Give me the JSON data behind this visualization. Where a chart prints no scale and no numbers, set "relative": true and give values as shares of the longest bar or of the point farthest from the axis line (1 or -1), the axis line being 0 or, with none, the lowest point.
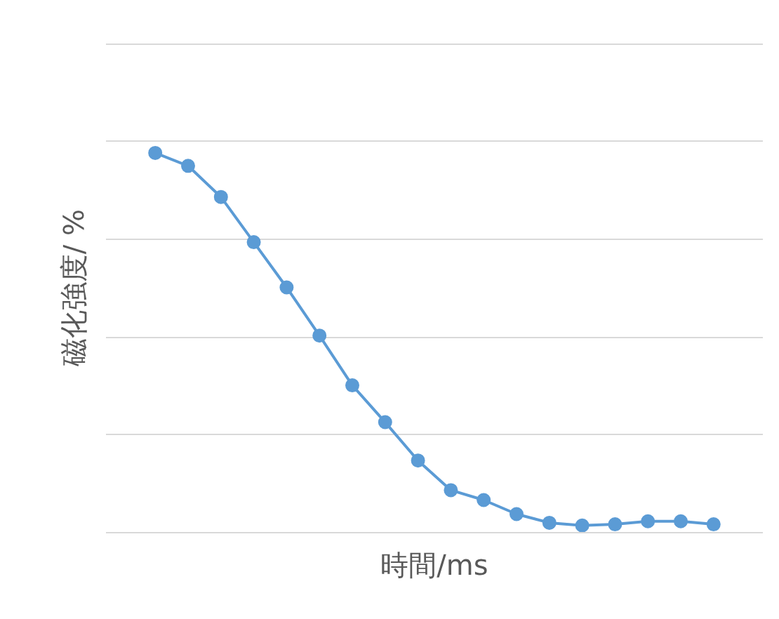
{
  "chart_data": {
    "type": "line",
    "xlabel": "時間/ms",
    "ylabel": "磁化強度/ %",
    "relative": true,
    "marker": "circle",
    "line_style": "solid",
    "grid": "y",
    "categories": [
      null,
      null,
      null,
      null,
      null,
      null,
      null,
      null,
      null,
      null,
      null,
      null,
      null,
      null,
      null,
      null,
      null,
      null
    ],
    "series": [
      {
        "color": "#5b9bd5",
        "values": [
          1.0,
          0.966,
          0.884,
          0.765,
          0.646,
          0.519,
          0.388,
          0.291,
          0.19,
          0.112,
          0.086,
          0.049,
          0.026,
          0.019,
          0.022,
          0.03,
          0.03,
          0.022
        ]
      }
    ]
  }
}
